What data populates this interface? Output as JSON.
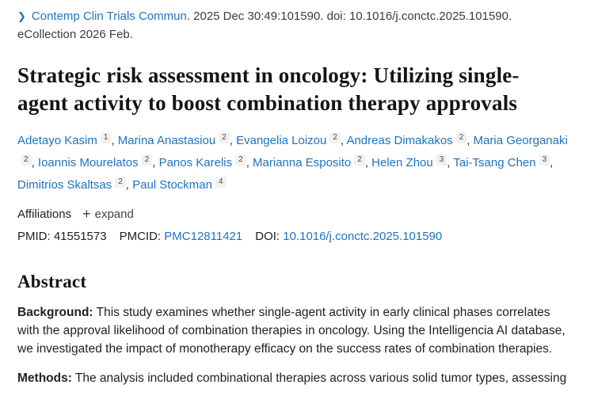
{
  "colors": {
    "link_blue": "#1e73c0",
    "text_dark": "#212121",
    "badge_background": "#f1f1f1"
  },
  "citation": {
    "journal": "Contemp Clin Trials Commun",
    "details": ". 2025 Dec 30:49:101590. doi: 10.1016/j.conctc.2025.101590. eCollection 2026 Feb."
  },
  "title": "Strategic risk assessment in oncology: Utilizing single-agent activity to boost combination therapy approvals",
  "authors": [
    {
      "name": "Adetayo Kasim",
      "sup": "1",
      "sep": ", "
    },
    {
      "name": "Marina Anastasiou",
      "sup": "2",
      "sep": ", "
    },
    {
      "name": "Evangelia Loizou",
      "sup": "2",
      "sep": ", "
    },
    {
      "name": "Andreas Dimakakos",
      "sup": "2",
      "sep": ", "
    },
    {
      "name": "Maria Georganaki",
      "sup": "2",
      "sep": ", "
    },
    {
      "name": "Ioannis Mourelatos",
      "sup": "2",
      "sep": ", "
    },
    {
      "name": "Panos Karelis",
      "sup": "2",
      "sep": ", "
    },
    {
      "name": "Marianna Esposito",
      "sup": "2",
      "sep": ", "
    },
    {
      "name": "Helen Zhou",
      "sup": "3",
      "sep": ", "
    },
    {
      "name": "Tai-Tsang Chen",
      "sup": "3",
      "sep": ", "
    },
    {
      "name": "Dimitrios Skaltsas",
      "sup": "2",
      "sep": ", "
    },
    {
      "name": "Paul Stockman",
      "sup": "4",
      "sep": ""
    }
  ],
  "affiliations": {
    "label": "Affiliations",
    "plus": "+",
    "expand_label": "expand"
  },
  "identifiers": {
    "pmid_label": "PMID:",
    "pmid_value": "41551573",
    "pmcid_label": "PMCID:",
    "pmcid_value": "PMC12811421",
    "doi_label": "DOI:",
    "doi_value": "10.1016/j.conctc.2025.101590"
  },
  "abstract": {
    "heading": "Abstract",
    "sections": [
      {
        "label": "Background:",
        "text": " This study examines whether single-agent activity in early clinical phases correlates with the approval likelihood of combination therapies in oncology. Using the Intelligencia AI database, we investigated the impact of monotherapy efficacy on the success rates of combination therapies."
      },
      {
        "label": "Methods:",
        "text": " The analysis included combinational therapies across various solid tumor types, assessing"
      }
    ]
  }
}
